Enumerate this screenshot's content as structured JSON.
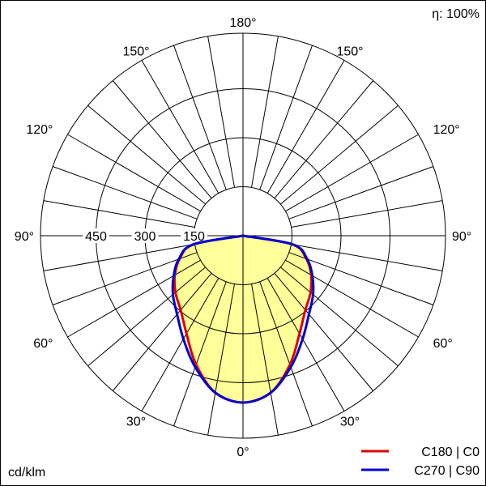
{
  "chart_data": {
    "type": "polar",
    "efficiency_label": "η: 100%",
    "unit_label": "cd/klm",
    "radial_ticks": [
      150,
      300,
      450
    ],
    "r_max": 620,
    "angle_labels": [
      {
        "angle": 0,
        "text": "0°"
      },
      {
        "angle": 30,
        "text": "30°"
      },
      {
        "angle": 60,
        "text": "60°"
      },
      {
        "angle": 90,
        "text": "90°"
      },
      {
        "angle": 120,
        "text": "120°"
      },
      {
        "angle": 150,
        "text": "150°"
      },
      {
        "angle": 180,
        "text": "180°"
      }
    ],
    "colors": {
      "fill": "#ffff99",
      "c180_c0": "#dd0000",
      "c270_c90": "#0000cc",
      "grid": "#000000"
    },
    "series": [
      {
        "name": "C180 | C0",
        "color": "#dd0000",
        "angles": [
          0,
          10,
          20,
          30,
          40,
          50,
          60,
          70,
          80,
          90
        ],
        "values": [
          511,
          488,
          420,
          346,
          297,
          270,
          241,
          206,
          154,
          0
        ]
      },
      {
        "name": "C270 | C90",
        "color": "#0000cc",
        "angles": [
          0,
          10,
          20,
          30,
          40,
          50,
          60,
          70,
          80,
          90
        ],
        "values": [
          511,
          488,
          428,
          365,
          314,
          280,
          245,
          209,
          156,
          0
        ]
      }
    ]
  }
}
